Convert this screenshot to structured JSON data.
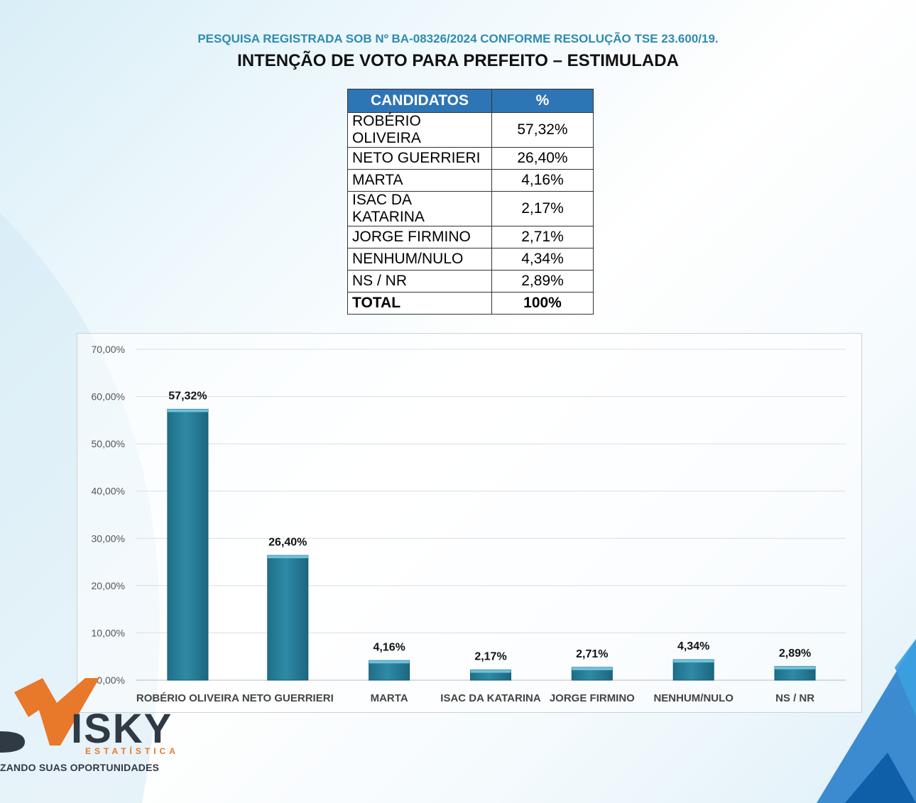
{
  "header": {
    "registry": "PESQUISA REGISTRADA SOB Nº BA-08326/2024 CONFORME RESOLUÇÃO TSE 23.600/19.",
    "title": "INTENÇÃO DE VOTO PARA PREFEITO – ESTIMULADA"
  },
  "table": {
    "col_candidates": "CANDIDATOS",
    "col_percent": "%",
    "rows": [
      {
        "name": "ROBÉRIO OLIVEIRA",
        "pct": "57,32%"
      },
      {
        "name": "NETO GUERRIERI",
        "pct": "26,40%"
      },
      {
        "name": "MARTA",
        "pct": "4,16%"
      },
      {
        "name": "ISAC DA KATARINA",
        "pct": "2,17%"
      },
      {
        "name": "JORGE FIRMINO",
        "pct": "2,71%"
      },
      {
        "name": "NENHUM/NULO",
        "pct": "4,34%"
      },
      {
        "name": "NS / NR",
        "pct": "2,89%"
      }
    ],
    "total_label": "TOTAL",
    "total_value": "100%"
  },
  "chart_data": {
    "type": "bar",
    "categories": [
      "ROBÉRIO OLIVEIRA",
      "NETO GUERRIERI",
      "MARTA",
      "ISAC DA KATARINA",
      "JORGE FIRMINO",
      "NENHUM/NULO",
      "NS / NR"
    ],
    "values": [
      57.32,
      26.4,
      4.16,
      2.17,
      2.71,
      4.34,
      2.89
    ],
    "data_labels": [
      "57,32%",
      "26,40%",
      "4,16%",
      "2,17%",
      "2,71%",
      "4,34%",
      "2,89%"
    ],
    "yticks": [
      "0,00%",
      "10,00%",
      "20,00%",
      "30,00%",
      "40,00%",
      "50,00%",
      "60,00%",
      "70,00%"
    ],
    "ylim": [
      0,
      70
    ],
    "grid": true,
    "bar_color": "#2f8aa6"
  },
  "logo": {
    "name": "ISKY",
    "sub": "ESTATÍSTICA",
    "tagline": "ZANDO SUAS OPORTUNIDADES"
  }
}
